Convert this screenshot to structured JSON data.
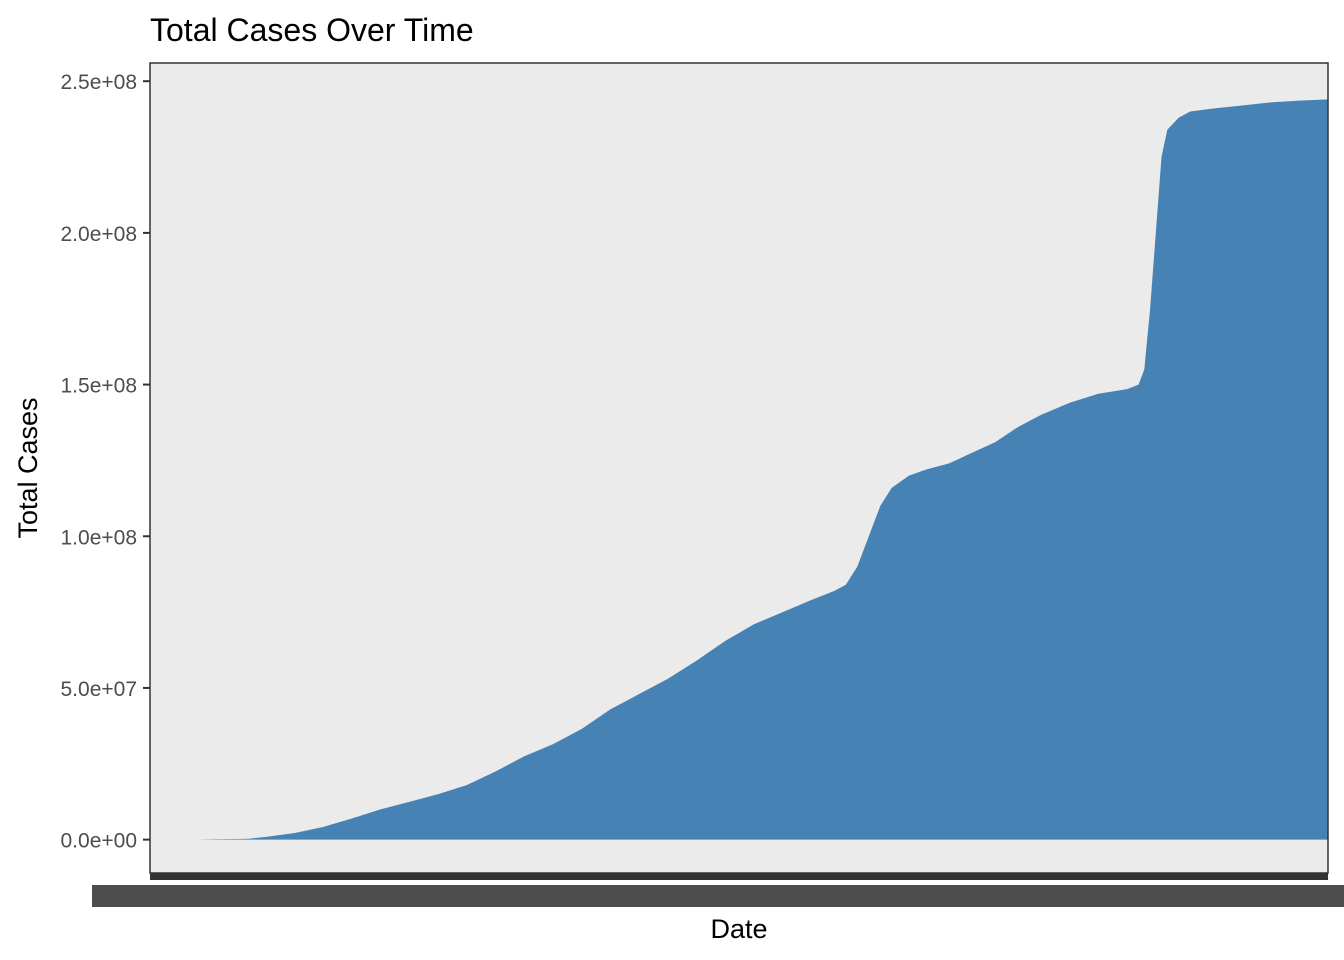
{
  "colors": {
    "panel_background": "#EBEBEB",
    "panel_border": "#333333",
    "area_fill": "#4682B4",
    "tick_text": "#4D4D4D",
    "title_text": "#000000",
    "page_background": "#FFFFFF"
  },
  "chart_data": {
    "type": "area",
    "title": "Total Cases Over Time",
    "xlabel": "Date",
    "ylabel": "Total Cases",
    "x_tick_labels_note": "overplotted-illegible",
    "y_ticks": [
      0,
      50000000,
      100000000,
      150000000,
      200000000,
      250000000
    ],
    "y_tick_labels": [
      "0.0e+00",
      "5.0e+07",
      "1.0e+08",
      "1.5e+08",
      "2.0e+08",
      "2.5e+08"
    ],
    "ylim": [
      -11000000,
      256000000
    ],
    "grid": false,
    "legend": "none",
    "series": [
      {
        "values": [
          [
            0,
            0
          ],
          [
            3,
            0
          ],
          [
            6,
            100000
          ],
          [
            10,
            200000
          ],
          [
            12,
            300000
          ],
          [
            15,
            900000
          ],
          [
            20,
            2200000
          ],
          [
            25,
            4200000
          ],
          [
            30,
            7000000
          ],
          [
            35,
            10000000
          ],
          [
            40,
            12500000
          ],
          [
            45,
            15000000
          ],
          [
            50,
            18000000
          ],
          [
            55,
            22500000
          ],
          [
            60,
            27500000
          ],
          [
            65,
            31500000
          ],
          [
            70,
            36500000
          ],
          [
            75,
            43000000
          ],
          [
            80,
            48000000
          ],
          [
            85,
            53000000
          ],
          [
            90,
            59000000
          ],
          [
            95,
            65500000
          ],
          [
            100,
            71000000
          ],
          [
            105,
            75000000
          ],
          [
            110,
            79000000
          ],
          [
            114,
            82000000
          ],
          [
            116,
            84000000
          ],
          [
            118,
            90000000
          ],
          [
            120,
            100000000
          ],
          [
            122,
            110000000
          ],
          [
            124,
            116000000
          ],
          [
            127,
            120000000
          ],
          [
            130,
            122000000
          ],
          [
            134,
            124000000
          ],
          [
            138,
            127500000
          ],
          [
            142,
            131000000
          ],
          [
            146,
            136000000
          ],
          [
            150,
            140000000
          ],
          [
            155,
            144000000
          ],
          [
            160,
            147000000
          ],
          [
            165,
            148500000
          ],
          [
            167,
            150000000
          ],
          [
            168,
            155000000
          ],
          [
            169,
            175000000
          ],
          [
            170,
            200000000
          ],
          [
            171,
            225000000
          ],
          [
            172,
            234000000
          ],
          [
            174,
            238000000
          ],
          [
            176,
            240000000
          ],
          [
            180,
            241000000
          ],
          [
            185,
            242000000
          ],
          [
            190,
            243000000
          ],
          [
            195,
            243600000
          ],
          [
            200,
            244000000
          ]
        ]
      }
    ]
  }
}
